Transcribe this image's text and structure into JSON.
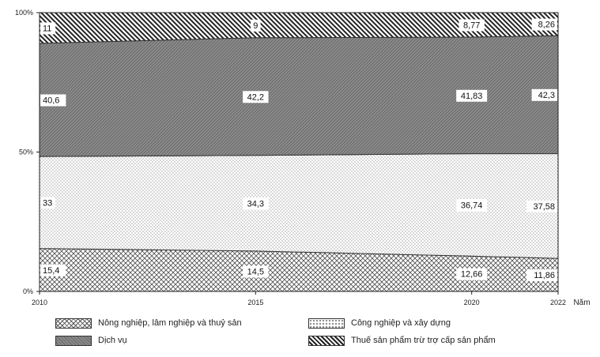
{
  "chart_data": {
    "type": "area",
    "stacked": true,
    "percent": true,
    "title": "",
    "xlabel": "Năm",
    "ylabel": "",
    "x": [
      2010,
      2015,
      2020,
      2022
    ],
    "y_ticks": [
      "0%",
      "50%",
      "100%"
    ],
    "ylim": [
      0,
      100
    ],
    "series": [
      {
        "name": "Nông nghiệp, lâm nghiệp và thuỷ sản",
        "values": [
          15.4,
          14.5,
          12.66,
          11.86
        ],
        "labels": [
          "15,4",
          "14,5",
          "12,66",
          "11,86"
        ],
        "pattern": "crosshatch"
      },
      {
        "name": "Công nghiệp và xây dựng",
        "values": [
          33,
          34.3,
          36.74,
          37.58
        ],
        "labels": [
          "33",
          "34,3",
          "36,74",
          "37,58"
        ],
        "pattern": "dots"
      },
      {
        "name": "Dịch vụ",
        "values": [
          40.6,
          42.2,
          41.83,
          42.3
        ],
        "labels": [
          "40,6",
          "42,2",
          "41,83",
          "42,3"
        ],
        "pattern": "dense-hatch"
      },
      {
        "name": "Thuế sản phẩm trừ trợ cấp sản phẩm",
        "values": [
          11,
          9,
          8.77,
          8.26
        ],
        "labels": [
          "11",
          "9",
          "8,77",
          "8,26"
        ],
        "pattern": "diagonal"
      }
    ],
    "legend_position": "bottom",
    "grid": false
  }
}
